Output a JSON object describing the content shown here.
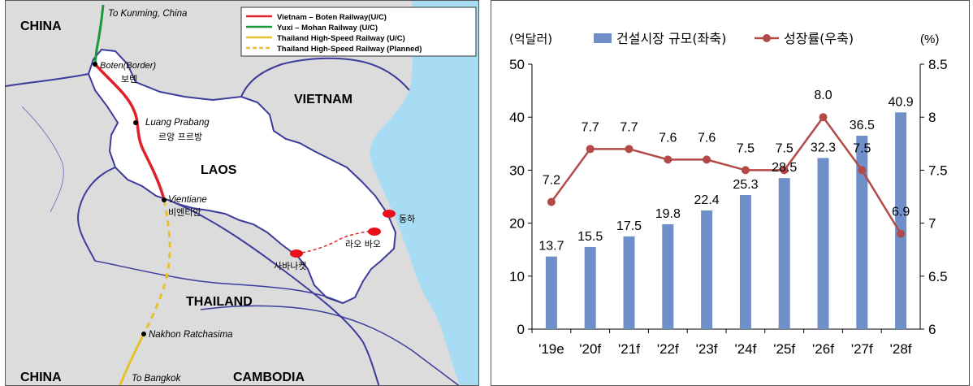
{
  "map": {
    "countries": {
      "china_top": "CHINA",
      "china_bottom": "CHINA",
      "vietnam": "VIETNAM",
      "laos": "LAOS",
      "thailand": "THAILAND",
      "cambodia": "CAMBODIA"
    },
    "destinations": {
      "kunming": "To Kunming, China",
      "bangkok": "To Bangkok"
    },
    "cities": {
      "boten_en": "Boten(Border)",
      "boten_kr": "보텐",
      "luang_en": "Luang Prabang",
      "luang_kr": "르앙 프르방",
      "vientiane_en": "Vientiane",
      "vientiane_kr": "비엔티안",
      "nakhon": "Nakhon Ratchasima",
      "dongha": "동하",
      "laobao": "라오 바오",
      "savannakhet": "사바나켓"
    },
    "legend": [
      {
        "label": "Vietnam – Boten Railway(U/C)",
        "color": "#e0202a",
        "dash": false
      },
      {
        "label": "Yuxi – Mohan Railway (U/C)",
        "color": "#1a9a3a",
        "dash": false
      },
      {
        "label": "Thailand High-Speed Railway (U/C)",
        "color": "#e6c22a",
        "dash": false
      },
      {
        "label": "Thailand High-Speed Railway (Planned)",
        "color": "#e6c22a",
        "dash": true
      }
    ],
    "colors": {
      "laos_fill": "#ffffff",
      "neighbor_fill": "#dcdcdc",
      "sea": "#a8dcf4",
      "border_line": "#3c3c9a",
      "marker": "#e8101a"
    }
  },
  "chart_data": {
    "type": "bar",
    "categories": [
      "'19e",
      "'20f",
      "'21f",
      "'22f",
      "'23f",
      "'24f",
      "'25f",
      "'26f",
      "'27f",
      "'28f"
    ],
    "series": [
      {
        "name": "건설시장 규모(좌축)",
        "type": "bar",
        "axis": "left",
        "color": "#6f8fc8",
        "values": [
          13.7,
          15.5,
          17.5,
          19.8,
          22.4,
          25.3,
          28.5,
          32.3,
          36.5,
          40.9
        ]
      },
      {
        "name": "성장률(우축)",
        "type": "line",
        "axis": "right",
        "color": "#b24a47",
        "values": [
          7.2,
          7.7,
          7.7,
          7.6,
          7.6,
          7.5,
          7.5,
          8.0,
          7.5,
          6.9
        ]
      }
    ],
    "y_left_label": "(억달러)",
    "y_right_label": "(%)",
    "ylim_left": [
      0,
      50
    ],
    "y_ticks_left": [
      "0",
      "10",
      "20",
      "30",
      "40",
      "50"
    ],
    "ylim_right": [
      6,
      8.5
    ],
    "y_ticks_right": [
      "6",
      "6.5",
      "7",
      "7.5",
      "8",
      "8.5"
    ],
    "bar_labels": [
      "13.7",
      "15.5",
      "17.5",
      "19.8",
      "22.4",
      "25.3",
      "28.5",
      "32.3",
      "36.5",
      "40.9"
    ],
    "line_labels": [
      "7.2",
      "7.7",
      "7.7",
      "7.6",
      "7.6",
      "7.5",
      "7.5",
      "8.0",
      "7.5",
      "6.9"
    ],
    "legend_position": "top",
    "grid": false
  }
}
